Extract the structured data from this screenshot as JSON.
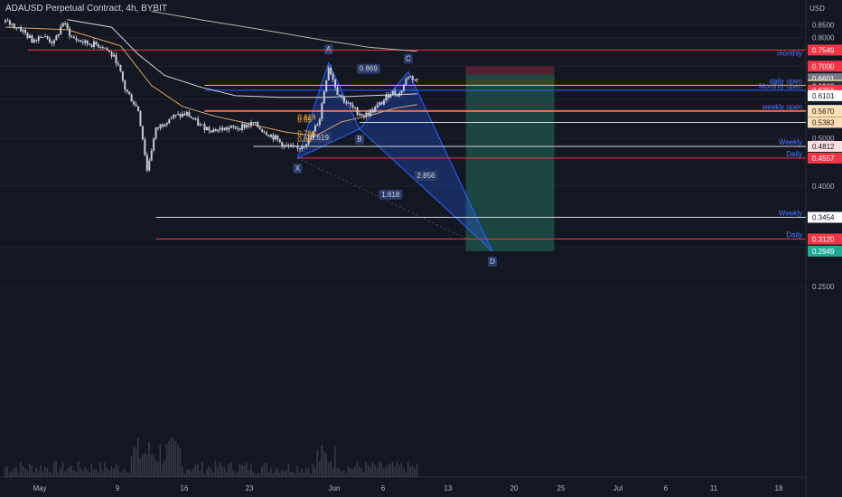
{
  "header": {
    "symbol": "ADAUSD Perpetual Contract",
    "separator1": ", ",
    "interval": "4h",
    "separator2": ", ",
    "exchange": "BYBIT"
  },
  "colors": {
    "background": "#131722",
    "candle": "#c8ccd6",
    "sma_fast": "#d9a46a",
    "sma_slow": "#d9d9d9",
    "sma_long": "#b7b0a6",
    "harmonic": "#2962ff",
    "volume": "#363a45",
    "profit_zone": "#1d4d44",
    "loss_zone": "#5c2330",
    "red_level": "#f23645",
    "blue_level": "#2962ff",
    "orange_level": "#ffb74d",
    "white_level": "#d1d4dc"
  },
  "chart_data": {
    "type": "candlestick",
    "symbol": "ADAUSD Perpetual Contract",
    "timeframe": "4h",
    "exchange": "BYBIT",
    "y_axis_unit": "USD",
    "y_scale": "log",
    "y_range": [
      0.235,
      0.905
    ],
    "x_ticks": [
      "May",
      "9",
      "16",
      "23",
      "Jun",
      "6",
      "13",
      "20",
      "25",
      "Jul",
      "6",
      "11",
      "18"
    ],
    "y_ticks": [
      0.85,
      0.8,
      0.5,
      0.4,
      0.25
    ],
    "price_path": [
      {
        "t": 0,
        "p": 0.86
      },
      {
        "t": 3,
        "p": 0.84
      },
      {
        "t": 6,
        "p": 0.79
      },
      {
        "t": 8,
        "p": 0.81
      },
      {
        "t": 11,
        "p": 0.78
      },
      {
        "t": 13,
        "p": 0.86
      },
      {
        "t": 15,
        "p": 0.8
      },
      {
        "t": 18,
        "p": 0.78
      },
      {
        "t": 22,
        "p": 0.77
      },
      {
        "t": 25,
        "p": 0.72
      },
      {
        "t": 27,
        "p": 0.63
      },
      {
        "t": 30,
        "p": 0.57
      },
      {
        "t": 32,
        "p": 0.43
      },
      {
        "t": 34,
        "p": 0.52
      },
      {
        "t": 37,
        "p": 0.55
      },
      {
        "t": 41,
        "p": 0.56
      },
      {
        "t": 44,
        "p": 0.53
      },
      {
        "t": 47,
        "p": 0.52
      },
      {
        "t": 52,
        "p": 0.525
      },
      {
        "t": 56,
        "p": 0.535
      },
      {
        "t": 58,
        "p": 0.52
      },
      {
        "t": 61,
        "p": 0.5
      },
      {
        "t": 63,
        "p": 0.482
      },
      {
        "t": 66,
        "p": 0.475
      },
      {
        "t": 69,
        "p": 0.5
      },
      {
        "t": 71,
        "p": 0.55
      },
      {
        "t": 73,
        "p": 0.7
      },
      {
        "t": 75,
        "p": 0.62
      },
      {
        "t": 77,
        "p": 0.59
      },
      {
        "t": 79,
        "p": 0.57
      },
      {
        "t": 81,
        "p": 0.555
      },
      {
        "t": 83,
        "p": 0.57
      },
      {
        "t": 85,
        "p": 0.59
      },
      {
        "t": 87,
        "p": 0.62
      },
      {
        "t": 89,
        "p": 0.615
      },
      {
        "t": 91,
        "p": 0.67
      },
      {
        "t": 93,
        "p": 0.655
      }
    ],
    "moving_averages": [
      {
        "points": [
          [
            0,
            0.84
          ],
          [
            14,
            0.83
          ],
          [
            26,
            0.77
          ],
          [
            33,
            0.64
          ],
          [
            40,
            0.58
          ],
          [
            47,
            0.555
          ],
          [
            55,
            0.535
          ],
          [
            63,
            0.515
          ],
          [
            70,
            0.505
          ],
          [
            76,
            0.54
          ],
          [
            82,
            0.555
          ],
          [
            88,
            0.575
          ],
          [
            93,
            0.585
          ]
        ]
      },
      {
        "points": [
          [
            14,
            0.87
          ],
          [
            24,
            0.84
          ],
          [
            30,
            0.74
          ],
          [
            36,
            0.67
          ],
          [
            44,
            0.635
          ],
          [
            52,
            0.61
          ],
          [
            62,
            0.605
          ],
          [
            72,
            0.605
          ],
          [
            82,
            0.61
          ],
          [
            93,
            0.615
          ]
        ]
      },
      {
        "points": [
          [
            33,
            0.905
          ],
          [
            44,
            0.87
          ],
          [
            58,
            0.83
          ],
          [
            72,
            0.79
          ],
          [
            82,
            0.765
          ],
          [
            93,
            0.75
          ]
        ]
      }
    ],
    "harmonic_pattern": {
      "points": [
        {
          "label": "X",
          "t": 66,
          "p": 0.4557
        },
        {
          "label": "A",
          "t": 73,
          "p": 0.712
        },
        {
          "label": "B",
          "t": 80,
          "p": 0.522
        },
        {
          "label": "C",
          "t": 91,
          "p": 0.682
        },
        {
          "label": "D",
          "t": 110,
          "p": 0.2949
        }
      ],
      "ratios": [
        {
          "text": "0.869",
          "t": 82,
          "p": 0.684
        },
        {
          "text": "0.619",
          "t": 71,
          "p": 0.496
        },
        {
          "text": "2.856",
          "t": 95,
          "p": 0.415
        },
        {
          "text": "1.618",
          "t": 87,
          "p": 0.38
        }
      ]
    },
    "fib_labels": [
      {
        "text": "0.618",
        "t": 66,
        "p": 0.545
      },
      {
        "text": "0.65",
        "t": 66,
        "p": 0.538
      },
      {
        "text": "0.786",
        "t": 66,
        "p": 0.505
      },
      {
        "text": "0.83",
        "t": 66,
        "p": 0.492
      }
    ],
    "position": {
      "entry": 0.6404,
      "stop": 0.7,
      "target": 0.2949,
      "t_start": 104,
      "t_end": 124
    },
    "levels": [
      {
        "price": 0.7549,
        "label": "monthly",
        "color": "red_level",
        "t_start": 5
      },
      {
        "price": 0.6404,
        "label": "daily open",
        "color": "orange_level",
        "t_start": 45
      },
      {
        "price": 0.6256,
        "label": "Monthly open",
        "color": "blue_level",
        "t_start": 45
      },
      {
        "price": 0.5692,
        "label": "",
        "color": "red_level",
        "t_start": 45
      },
      {
        "price": 0.567,
        "label": "weekly open",
        "color": "orange_level",
        "t_start": 45
      },
      {
        "price": 0.5383,
        "label": "",
        "color": "white_level",
        "t_start": 80
      },
      {
        "price": 0.4812,
        "label": "Weekly",
        "color": "white_level",
        "t_start": 56
      },
      {
        "price": 0.4557,
        "label": "Daily",
        "color": "red_level",
        "t_start": 66
      },
      {
        "price": 0.3454,
        "label": "Weekly",
        "color": "white_level",
        "t_start": 34
      },
      {
        "price": 0.3122,
        "label": "Daily",
        "color": "red_level",
        "t_start": 34
      }
    ],
    "price_labels": [
      {
        "text": "0.7549",
        "price": 0.7549,
        "color": "#f23645"
      },
      {
        "text": "0.7000",
        "price": 0.7,
        "color": "#f23645"
      },
      {
        "text": "0.6601",
        "price": 0.6601,
        "color": "#787b86"
      },
      {
        "text": "0.6404",
        "price": 0.6404,
        "color": "#ffe0b2",
        "dark": true
      },
      {
        "text": "0.6368",
        "price": 0.6368,
        "color": "#2a2e39",
        "second": "03:40:23"
      },
      {
        "text": "0.6256",
        "price": 0.6256,
        "color": "#f23645"
      },
      {
        "text": "0.6101",
        "price": 0.6101,
        "color": "#ffffff",
        "dark": true
      },
      {
        "text": "0.5692",
        "price": 0.5692,
        "color": "#ffffff",
        "dark": true
      },
      {
        "text": "0.5670",
        "price": 0.567,
        "color": "#ffe0b2",
        "dark": true
      },
      {
        "text": "0.5383",
        "price": 0.5383,
        "color": "#ffe0b2",
        "dark": true
      },
      {
        "text": "0.4812",
        "price": 0.4812,
        "color": "#ffe0e0",
        "dark": true
      },
      {
        "text": "0.4557",
        "price": 0.4557,
        "color": "#f23645"
      },
      {
        "text": "0.3454",
        "price": 0.3454,
        "color": "#ffffff",
        "dark": true
      },
      {
        "text": "0.3122",
        "price": 0.3122,
        "color": "#f23645"
      },
      {
        "text": "0.3120",
        "price": 0.312,
        "color": "#f23645"
      },
      {
        "text": "0.2949",
        "price": 0.2949,
        "color": "#22ab94"
      }
    ]
  }
}
